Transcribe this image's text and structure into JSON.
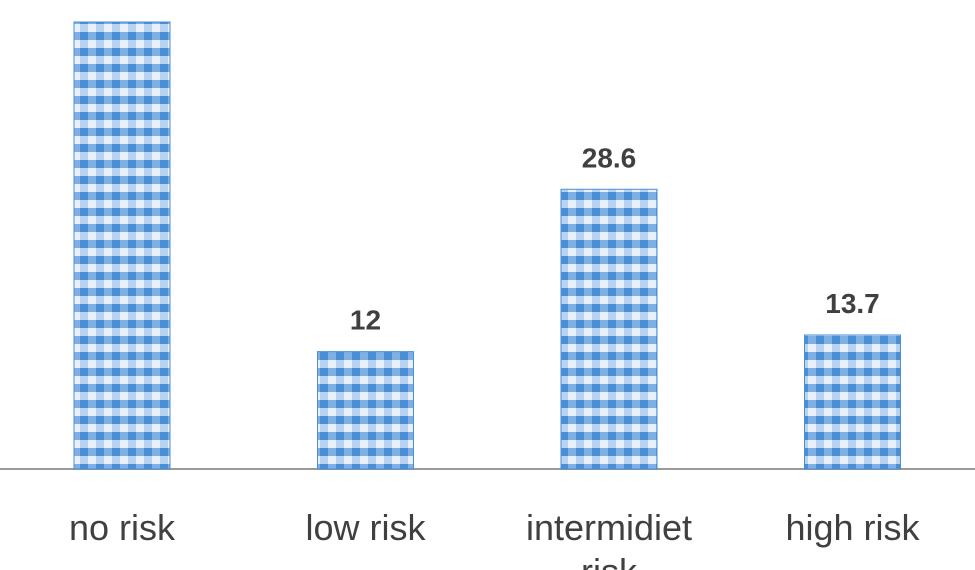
{
  "chart_data": {
    "type": "bar",
    "categories": [
      "no risk",
      "low risk",
      "intermidiet risk",
      "high risk"
    ],
    "values": [
      45.7,
      12,
      28.6,
      13.7
    ],
    "value_labels": [
      null,
      "12",
      "28.6",
      "13.7"
    ],
    "color": "#4a8fd6"
  }
}
